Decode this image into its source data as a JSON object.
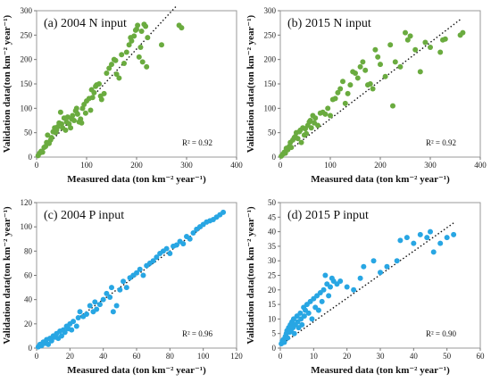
{
  "charts": [
    {
      "type": "scatter",
      "panel": "a",
      "title": "(a) 2004 N input",
      "xlabel": "Measured data (ton km⁻² year⁻¹)",
      "ylabel": "Validation data(ton km⁻² year⁻¹)",
      "xlim": [
        0,
        400
      ],
      "ylim": [
        0,
        300
      ],
      "xticks": [
        0,
        100,
        200,
        300,
        400
      ],
      "yticks": [
        0,
        50,
        100,
        150,
        200,
        250,
        300
      ],
      "r2_label": "R² = 0.92",
      "color": "#6aab3f",
      "trend": [
        [
          0,
          0
        ],
        [
          280,
          310
        ]
      ],
      "points": [
        [
          3,
          3
        ],
        [
          6,
          8
        ],
        [
          9,
          12
        ],
        [
          12,
          10
        ],
        [
          15,
          20
        ],
        [
          18,
          22
        ],
        [
          20,
          30
        ],
        [
          22,
          45
        ],
        [
          25,
          28
        ],
        [
          28,
          35
        ],
        [
          30,
          40
        ],
        [
          33,
          52
        ],
        [
          36,
          60
        ],
        [
          38,
          50
        ],
        [
          40,
          55
        ],
        [
          42,
          62
        ],
        [
          45,
          70
        ],
        [
          48,
          92
        ],
        [
          50,
          68
        ],
        [
          52,
          60
        ],
        [
          55,
          80
        ],
        [
          58,
          55
        ],
        [
          60,
          72
        ],
        [
          62,
          82
        ],
        [
          65,
          68
        ],
        [
          68,
          60
        ],
        [
          70,
          78
        ],
        [
          72,
          85
        ],
        [
          75,
          75
        ],
        [
          78,
          95
        ],
        [
          80,
          100
        ],
        [
          82,
          88
        ],
        [
          85,
          72
        ],
        [
          88,
          78
        ],
        [
          90,
          70
        ],
        [
          92,
          100
        ],
        [
          95,
          108
        ],
        [
          98,
          90
        ],
        [
          100,
          115
        ],
        [
          105,
          120
        ],
        [
          108,
          96
        ],
        [
          110,
          138
        ],
        [
          112,
          122
        ],
        [
          115,
          132
        ],
        [
          118,
          145
        ],
        [
          120,
          148
        ],
        [
          125,
          150
        ],
        [
          128,
          125
        ],
        [
          130,
          118
        ],
        [
          135,
          130
        ],
        [
          140,
          172
        ],
        [
          145,
          182
        ],
        [
          150,
          190
        ],
        [
          155,
          200
        ],
        [
          158,
          198
        ],
        [
          160,
          170
        ],
        [
          165,
          162
        ],
        [
          170,
          210
        ],
        [
          175,
          192
        ],
        [
          180,
          215
        ],
        [
          185,
          230
        ],
        [
          188,
          245
        ],
        [
          190,
          238
        ],
        [
          195,
          248
        ],
        [
          198,
          260
        ],
        [
          200,
          262
        ],
        [
          202,
          270
        ],
        [
          205,
          205
        ],
        [
          208,
          225
        ],
        [
          210,
          258
        ],
        [
          212,
          195
        ],
        [
          215,
          272
        ],
        [
          218,
          268
        ],
        [
          220,
          185
        ],
        [
          222,
          245
        ],
        [
          250,
          230
        ],
        [
          285,
          270
        ],
        [
          290,
          265
        ]
      ]
    },
    {
      "type": "scatter",
      "panel": "b",
      "title": "(b) 2015 N input",
      "xlabel": "Measured data (ton km⁻² year⁻¹)",
      "ylabel": "Validation data(ton km⁻² year⁻¹)",
      "xlim": [
        0,
        400
      ],
      "ylim": [
        0,
        300
      ],
      "xticks": [
        0,
        100,
        200,
        300,
        400
      ],
      "yticks": [
        0,
        50,
        100,
        150,
        200,
        250,
        300
      ],
      "r2_label": "R² = 0.92",
      "color": "#6aab3f",
      "trend": [
        [
          0,
          0
        ],
        [
          360,
          282
        ]
      ],
      "points": [
        [
          2,
          2
        ],
        [
          5,
          6
        ],
        [
          8,
          10
        ],
        [
          10,
          8
        ],
        [
          12,
          18
        ],
        [
          15,
          15
        ],
        [
          18,
          22
        ],
        [
          20,
          30
        ],
        [
          22,
          20
        ],
        [
          25,
          35
        ],
        [
          28,
          40
        ],
        [
          30,
          42
        ],
        [
          32,
          50
        ],
        [
          35,
          38
        ],
        [
          38,
          52
        ],
        [
          40,
          55
        ],
        [
          42,
          30
        ],
        [
          45,
          60
        ],
        [
          48,
          45
        ],
        [
          50,
          58
        ],
        [
          52,
          48
        ],
        [
          55,
          65
        ],
        [
          58,
          72
        ],
        [
          60,
          75
        ],
        [
          62,
          60
        ],
        [
          65,
          85
        ],
        [
          68,
          70
        ],
        [
          70,
          80
        ],
        [
          75,
          65
        ],
        [
          80,
          90
        ],
        [
          85,
          92
        ],
        [
          90,
          88
        ],
        [
          95,
          100
        ],
        [
          100,
          85
        ],
        [
          105,
          118
        ],
        [
          110,
          120
        ],
        [
          115,
          132
        ],
        [
          120,
          140
        ],
        [
          125,
          155
        ],
        [
          130,
          110
        ],
        [
          135,
          130
        ],
        [
          140,
          148
        ],
        [
          145,
          175
        ],
        [
          150,
          172
        ],
        [
          155,
          162
        ],
        [
          160,
          185
        ],
        [
          165,
          195
        ],
        [
          170,
          178
        ],
        [
          175,
          148
        ],
        [
          180,
          150
        ],
        [
          185,
          140
        ],
        [
          190,
          220
        ],
        [
          195,
          205
        ],
        [
          200,
          190
        ],
        [
          210,
          165
        ],
        [
          220,
          230
        ],
        [
          225,
          105
        ],
        [
          230,
          195
        ],
        [
          240,
          185
        ],
        [
          250,
          255
        ],
        [
          255,
          240
        ],
        [
          260,
          248
        ],
        [
          270,
          220
        ],
        [
          280,
          175
        ],
        [
          290,
          235
        ],
        [
          300,
          225
        ],
        [
          320,
          215
        ],
        [
          325,
          240
        ],
        [
          330,
          242
        ],
        [
          360,
          250
        ],
        [
          365,
          255
        ]
      ]
    },
    {
      "type": "scatter",
      "panel": "c",
      "title": "(c) 2004 P input",
      "xlabel": "Measured data (ton km⁻² year⁻¹)",
      "ylabel": "Validation data(ton km⁻² year⁻¹)",
      "xlim": [
        0,
        120
      ],
      "ylim": [
        0,
        120
      ],
      "xticks": [
        0,
        20,
        40,
        60,
        80,
        100,
        120
      ],
      "yticks": [
        0,
        20,
        40,
        60,
        80,
        100,
        120
      ],
      "r2_label": "R² = 0.96",
      "color": "#28a6e3",
      "trend": [
        [
          0,
          0
        ],
        [
          112,
          112
        ]
      ],
      "points": [
        [
          1,
          1
        ],
        [
          2,
          3
        ],
        [
          3,
          2
        ],
        [
          4,
          5
        ],
        [
          5,
          4
        ],
        [
          6,
          7
        ],
        [
          7,
          3
        ],
        [
          8,
          8
        ],
        [
          9,
          6
        ],
        [
          10,
          10
        ],
        [
          11,
          9
        ],
        [
          12,
          12
        ],
        [
          13,
          8
        ],
        [
          14,
          14
        ],
        [
          15,
          10
        ],
        [
          16,
          15
        ],
        [
          17,
          13
        ],
        [
          18,
          18
        ],
        [
          19,
          16
        ],
        [
          20,
          20
        ],
        [
          21,
          15
        ],
        [
          22,
          22
        ],
        [
          24,
          18
        ],
        [
          25,
          25
        ],
        [
          26,
          30
        ],
        [
          28,
          26
        ],
        [
          30,
          28
        ],
        [
          32,
          35
        ],
        [
          34,
          30
        ],
        [
          35,
          38
        ],
        [
          36,
          32
        ],
        [
          38,
          36
        ],
        [
          40,
          40
        ],
        [
          42,
          45
        ],
        [
          44,
          42
        ],
        [
          45,
          50
        ],
        [
          46,
          30
        ],
        [
          48,
          35
        ],
        [
          50,
          48
        ],
        [
          52,
          55
        ],
        [
          54,
          50
        ],
        [
          56,
          58
        ],
        [
          58,
          60
        ],
        [
          60,
          62
        ],
        [
          62,
          65
        ],
        [
          64,
          60
        ],
        [
          66,
          68
        ],
        [
          68,
          70
        ],
        [
          70,
          72
        ],
        [
          72,
          75
        ],
        [
          74,
          78
        ],
        [
          76,
          80
        ],
        [
          78,
          82
        ],
        [
          80,
          78
        ],
        [
          82,
          84
        ],
        [
          84,
          85
        ],
        [
          86,
          88
        ],
        [
          88,
          86
        ],
        [
          90,
          92
        ],
        [
          92,
          90
        ],
        [
          94,
          95
        ],
        [
          96,
          98
        ],
        [
          98,
          100
        ],
        [
          100,
          102
        ],
        [
          102,
          104
        ],
        [
          104,
          105
        ],
        [
          106,
          106
        ],
        [
          108,
          108
        ],
        [
          110,
          110
        ],
        [
          112,
          112
        ]
      ]
    },
    {
      "type": "scatter",
      "panel": "d",
      "title": "(d) 2015 P input",
      "xlabel": "Measured data (ton km⁻² year⁻¹)",
      "ylabel": "Validation data(ton km⁻² year⁻¹)",
      "xlim": [
        0,
        60
      ],
      "ylim": [
        0,
        50
      ],
      "xticks": [
        0,
        10,
        20,
        30,
        40,
        50,
        60
      ],
      "yticks": [
        0,
        5,
        10,
        15,
        20,
        25,
        30,
        35,
        40,
        45,
        50
      ],
      "r2_label": "R² = 0.90",
      "color": "#28a6e3",
      "trend": [
        [
          0,
          1
        ],
        [
          52,
          43
        ]
      ],
      "points": [
        [
          0.3,
          1.5
        ],
        [
          0.6,
          2.5
        ],
        [
          1,
          3
        ],
        [
          1.2,
          2
        ],
        [
          1.5,
          4
        ],
        [
          1.8,
          5
        ],
        [
          2,
          6
        ],
        [
          2.2,
          3.5
        ],
        [
          2.5,
          7
        ],
        [
          2.8,
          5.5
        ],
        [
          3,
          8
        ],
        [
          3.2,
          6
        ],
        [
          3.5,
          9
        ],
        [
          3.8,
          7
        ],
        [
          4,
          10
        ],
        [
          4.2,
          5
        ],
        [
          4.5,
          8
        ],
        [
          5,
          11
        ],
        [
          5.2,
          9
        ],
        [
          5.5,
          7
        ],
        [
          6,
          12
        ],
        [
          6.2,
          10
        ],
        [
          6.5,
          8
        ],
        [
          7,
          14
        ],
        [
          7.2,
          11
        ],
        [
          7.5,
          13
        ],
        [
          8,
          15
        ],
        [
          8.5,
          12
        ],
        [
          9,
          16
        ],
        [
          9.5,
          10
        ],
        [
          10,
          17
        ],
        [
          10.5,
          14
        ],
        [
          11,
          18
        ],
        [
          11.5,
          13
        ],
        [
          12,
          19
        ],
        [
          12.5,
          16
        ],
        [
          13,
          20
        ],
        [
          13.5,
          25
        ],
        [
          14,
          22
        ],
        [
          14.5,
          18
        ],
        [
          15,
          21
        ],
        [
          15.5,
          24
        ],
        [
          16,
          23
        ],
        [
          17,
          22
        ],
        [
          18,
          23
        ],
        [
          20,
          21
        ],
        [
          22,
          20
        ],
        [
          24,
          24
        ],
        [
          25,
          28
        ],
        [
          28,
          30
        ],
        [
          30,
          26
        ],
        [
          32,
          28
        ],
        [
          35,
          30
        ],
        [
          36,
          37
        ],
        [
          38,
          38
        ],
        [
          40,
          36
        ],
        [
          42,
          39
        ],
        [
          44,
          38
        ],
        [
          45,
          40
        ],
        [
          46,
          33
        ],
        [
          48,
          36
        ],
        [
          50,
          38
        ],
        [
          52,
          39
        ]
      ]
    }
  ]
}
